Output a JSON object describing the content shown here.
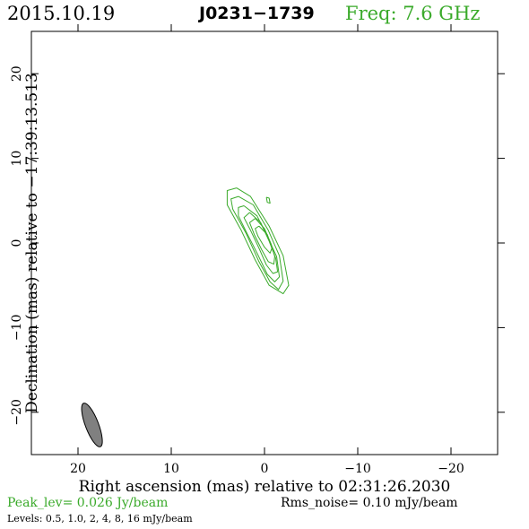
{
  "header": {
    "date": "2015.10.19",
    "source": "J0231−1739",
    "freq": "Freq: 7.6 GHz"
  },
  "footer": {
    "peak": "Peak_lev=  0.026 Jy/beam",
    "rms": "Rms_noise= 0.10 mJy/beam",
    "levels": "Levels: 0.5, 1.0,    2,    4,    8,   16 mJy/beam"
  },
  "colors": {
    "contour": "#3aaa2a",
    "beam_fill": "#808080",
    "freq_text": "#3aaa2a"
  },
  "chart_data": {
    "type": "contour",
    "xlabel": "Right ascension (mas) relative to 02:31:26.2030",
    "ylabel": "Declination (mas) relative to −17:39:13.513",
    "xlim": [
      25,
      -25
    ],
    "ylim": [
      -25,
      25
    ],
    "xticks": [
      20,
      10,
      0,
      -10,
      -20
    ],
    "yticks": [
      -20,
      -10,
      0,
      10,
      20
    ],
    "xtick_labels": [
      "20",
      "10",
      "0",
      "−10",
      "−20"
    ],
    "ytick_labels": [
      "−20",
      "−10",
      "0",
      "10",
      "20"
    ],
    "levels_mJy": [
      0.5,
      1.0,
      2,
      4,
      8,
      16
    ],
    "contours": [
      {
        "level": 0.5,
        "points": [
          [
            3.0,
            6.5
          ],
          [
            1.5,
            5.5
          ],
          [
            -0.5,
            2.0
          ],
          [
            -2.0,
            -1.5
          ],
          [
            -2.6,
            -5.0
          ],
          [
            -2.0,
            -6.0
          ],
          [
            -0.5,
            -5.0
          ],
          [
            1.0,
            -2.0
          ],
          [
            2.5,
            1.5
          ],
          [
            4.0,
            4.5
          ],
          [
            4.0,
            6.2
          ],
          [
            3.0,
            6.5
          ]
        ]
      },
      {
        "level": 1.0,
        "points": [
          [
            2.8,
            5.5
          ],
          [
            1.2,
            4.5
          ],
          [
            -0.4,
            1.5
          ],
          [
            -1.6,
            -1.5
          ],
          [
            -2.0,
            -4.5
          ],
          [
            -1.5,
            -5.5
          ],
          [
            -0.6,
            -4.6
          ],
          [
            0.6,
            -2.2
          ],
          [
            2.0,
            1.2
          ],
          [
            3.4,
            4.0
          ],
          [
            3.6,
            5.2
          ],
          [
            2.8,
            5.5
          ]
        ]
      },
      {
        "level": 2,
        "points": [
          [
            2.2,
            4.4
          ],
          [
            0.8,
            3.2
          ],
          [
            -0.2,
            1.0
          ],
          [
            -1.3,
            -1.6
          ],
          [
            -1.6,
            -4.0
          ],
          [
            -1.1,
            -4.6
          ],
          [
            -0.3,
            -3.7
          ],
          [
            0.8,
            -1.2
          ],
          [
            1.9,
            1.2
          ],
          [
            2.8,
            3.2
          ],
          [
            2.8,
            4.2
          ],
          [
            2.2,
            4.4
          ]
        ]
      },
      {
        "level": 4,
        "points": [
          [
            1.6,
            3.6
          ],
          [
            0.4,
            2.4
          ],
          [
            -0.5,
            0.2
          ],
          [
            -1.2,
            -1.8
          ],
          [
            -1.4,
            -3.4
          ],
          [
            -0.9,
            -3.6
          ],
          [
            -0.2,
            -2.6
          ],
          [
            0.6,
            -0.6
          ],
          [
            1.5,
            1.5
          ],
          [
            2.2,
            3.0
          ],
          [
            1.6,
            3.6
          ]
        ]
      },
      {
        "level": 8,
        "points": [
          [
            1.0,
            2.9
          ],
          [
            0.0,
            1.7
          ],
          [
            -0.7,
            -0.1
          ],
          [
            -1.1,
            -1.6
          ],
          [
            -1.0,
            -2.5
          ],
          [
            -0.4,
            -2.2
          ],
          [
            0.3,
            -0.8
          ],
          [
            1.1,
            1.0
          ],
          [
            1.6,
            2.4
          ],
          [
            1.0,
            2.9
          ]
        ]
      },
      {
        "level": 16,
        "points": [
          [
            0.6,
            2.0
          ],
          [
            -0.3,
            1.0
          ],
          [
            -0.8,
            -0.6
          ],
          [
            -0.6,
            -1.2
          ],
          [
            0.0,
            -0.5
          ],
          [
            0.7,
            0.8
          ],
          [
            1.0,
            1.7
          ],
          [
            0.6,
            2.0
          ]
        ]
      },
      {
        "level": 0.5,
        "points": [
          [
            -0.2,
            5.4
          ],
          [
            -0.3,
            4.8
          ],
          [
            -0.6,
            4.7
          ],
          [
            -0.5,
            5.3
          ],
          [
            -0.2,
            5.4
          ]
        ]
      }
    ],
    "beam": {
      "center": [
        18.5,
        -21.5
      ],
      "major_mas": 5.5,
      "minor_mas": 1.4,
      "pa_deg": 21
    }
  }
}
